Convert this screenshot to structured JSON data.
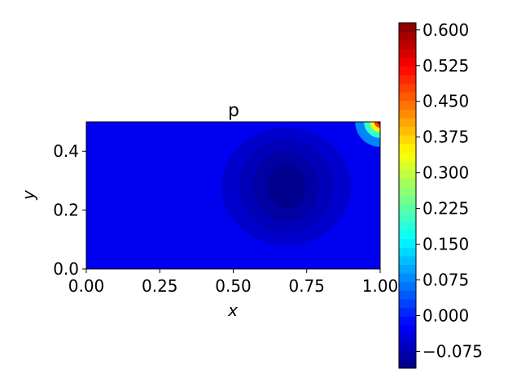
{
  "chart_data": {
    "type": "heatmap",
    "title": "p",
    "xlabel": "x",
    "ylabel": "y",
    "xlim": [
      0.0,
      1.0
    ],
    "ylim": [
      0.0,
      0.5
    ],
    "x_ticks": [
      0.0,
      0.25,
      0.5,
      0.75,
      1.0
    ],
    "x_tick_labels": [
      "0.00",
      "0.25",
      "0.50",
      "0.75",
      "1.00"
    ],
    "y_ticks": [
      0.0,
      0.2,
      0.4
    ],
    "y_tick_labels": [
      "0.0",
      "0.2",
      "0.4"
    ],
    "colormap": "jet",
    "colorbar": {
      "vmin": -0.11,
      "vmax": 0.615,
      "ticks": [
        -0.075,
        0.0,
        0.075,
        0.15,
        0.225,
        0.3,
        0.375,
        0.45,
        0.525,
        0.6
      ],
      "tick_labels": [
        "−0.075",
        "0.000",
        "0.075",
        "0.150",
        "0.225",
        "0.300",
        "0.375",
        "0.450",
        "0.525",
        "0.600"
      ]
    },
    "field_features": {
      "background_value": -0.03,
      "low_region": {
        "center": [
          0.68,
          0.28
        ],
        "value": -0.1
      },
      "high_corner": {
        "location": [
          1.0,
          0.5
        ],
        "value": 0.6
      }
    }
  }
}
